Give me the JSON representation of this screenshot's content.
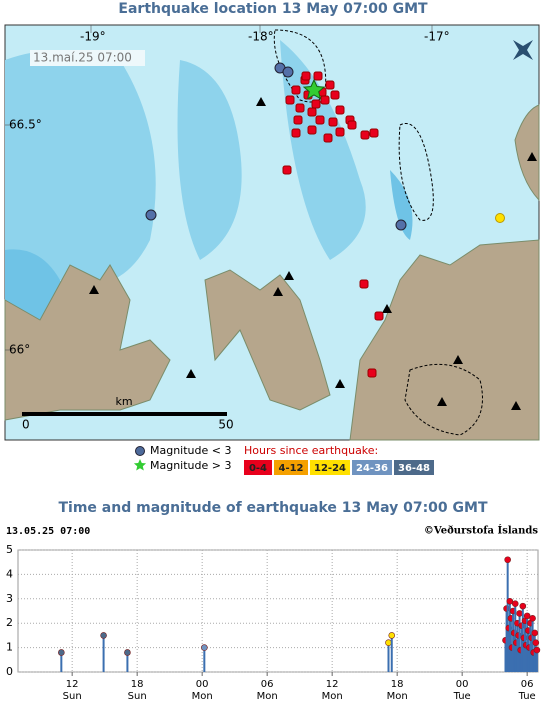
{
  "map": {
    "title": "Earthquake location   13 May 07:00 GMT",
    "timestamp": "13.maí.25  07:00",
    "lon_labels": [
      "-19°",
      "-18°",
      "-17°"
    ],
    "lat_labels": [
      "66.5°",
      "66°"
    ],
    "scale": {
      "start": "0",
      "unit": "km",
      "end": "50"
    },
    "legend": {
      "small": "Magnitude < 3",
      "large": "Magnitude > 3",
      "hours_title": "Hours since earthquake:",
      "hours": [
        {
          "label": "0-4",
          "color": "#e8001c"
        },
        {
          "label": "4-12",
          "color": "#f5a000"
        },
        {
          "label": "12-24",
          "color": "#ffe000"
        },
        {
          "label": "24-36",
          "color": "#6f93c0"
        },
        {
          "label": "36-48",
          "color": "#4d6a8a"
        }
      ]
    }
  },
  "chart_data": {
    "type": "stem",
    "title": "Time and magnitude of earthquake   13 May 07:00 GMT",
    "timestamp": "13.05.25 07:00",
    "credit": "©Veðurstofa Íslands",
    "xlim": [
      7,
      55
    ],
    "ylim": [
      0,
      5
    ],
    "yticks": [
      0,
      1,
      2,
      3,
      4,
      5
    ],
    "xticks": [
      {
        "value": 12,
        "label": "12"
      },
      {
        "value": 18,
        "label": "18"
      },
      {
        "value": 24,
        "label": "00"
      },
      {
        "value": 30,
        "label": "06"
      },
      {
        "value": 36,
        "label": "12"
      },
      {
        "value": 42,
        "label": "18"
      },
      {
        "value": 48,
        "label": "00"
      },
      {
        "value": 54,
        "label": "06"
      }
    ],
    "xtick_days": [
      "Sun",
      "Sun",
      "Mon",
      "Mon",
      "Mon",
      "Mon",
      "Tue",
      "Tue"
    ],
    "stem_color": "#3b6fb0",
    "grid": true,
    "x": [
      11.0,
      14.9,
      17.1,
      24.2,
      41.2,
      41.5,
      52.0,
      52.1,
      52.2,
      52.3,
      52.4,
      52.5,
      52.6,
      52.7,
      52.8,
      52.9,
      53.0,
      53.1,
      53.2,
      53.3,
      53.4,
      53.5,
      53.6,
      53.7,
      53.8,
      53.9,
      54.0,
      54.1,
      54.2,
      54.3,
      54.4,
      54.5,
      54.6,
      54.7,
      54.8,
      54.9
    ],
    "values": [
      0.8,
      1.5,
      0.8,
      1.0,
      1.2,
      1.5,
      1.3,
      2.6,
      4.6,
      1.8,
      2.9,
      2.2,
      1.0,
      2.5,
      1.6,
      2.8,
      1.2,
      2.0,
      1.5,
      2.4,
      0.9,
      1.9,
      2.7,
      1.4,
      2.1,
      1.1,
      2.3,
      1.7,
      1.0,
      2.0,
      1.4,
      2.2,
      0.8,
      1.6,
      1.2,
      0.9
    ],
    "colors": [
      "#4d6a8a",
      "#4d6a8a",
      "#4d6a8a",
      "#6f93c0",
      "#ffe000",
      "#ffe000",
      "#e8001c",
      "#e8001c",
      "#e8001c",
      "#e8001c",
      "#e8001c",
      "#e8001c",
      "#e8001c",
      "#e8001c",
      "#e8001c",
      "#e8001c",
      "#e8001c",
      "#e8001c",
      "#e8001c",
      "#e8001c",
      "#e8001c",
      "#e8001c",
      "#e8001c",
      "#e8001c",
      "#e8001c",
      "#e8001c",
      "#e8001c",
      "#e8001c",
      "#e8001c",
      "#e8001c",
      "#e8001c",
      "#e8001c",
      "#e8001c",
      "#e8001c",
      "#e8001c",
      "#e8001c"
    ]
  }
}
